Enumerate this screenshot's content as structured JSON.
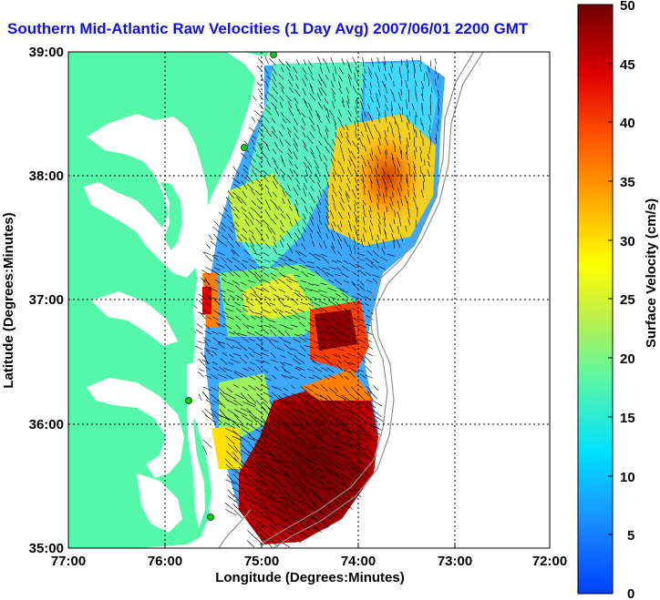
{
  "title": "Southern Mid-Atlantic Raw Velocities (1 Day Avg) 2007/06/01 2200 GMT",
  "xlabel": "Longitude (Degrees:Minutes)",
  "ylabel": "Latitude (Degrees:Minutes)",
  "colorbar_label": "Surface Velocity (cm/s)",
  "x_ticks": [
    "77:00",
    "76:00",
    "75:00",
    "74:00",
    "73:00",
    "72:00"
  ],
  "y_ticks": [
    "39:00",
    "38:00",
    "37:00",
    "36:00",
    "35:00"
  ],
  "colorbar_ticks": [
    "50",
    "45",
    "40",
    "35",
    "30",
    "25",
    "20",
    "15",
    "10",
    "5",
    "0"
  ],
  "colors": {
    "land": "#55f7a8",
    "water": "#ffffff",
    "title": "#1010e0",
    "arrows": "#000000"
  },
  "chart_data": {
    "type": "heatmap",
    "title": "Southern Mid-Atlantic Raw Velocities (1 Day Avg) 2007/06/01 2200 GMT",
    "xlabel": "Longitude (Degrees:Minutes)",
    "ylabel": "Latitude (Degrees:Minutes)",
    "xlim": [
      -77,
      -72
    ],
    "ylim": [
      35,
      39
    ],
    "grid": true,
    "colorbar": {
      "label": "Surface Velocity (cm/s)",
      "range": [
        0,
        50
      ],
      "colormap": "jet"
    }
  }
}
